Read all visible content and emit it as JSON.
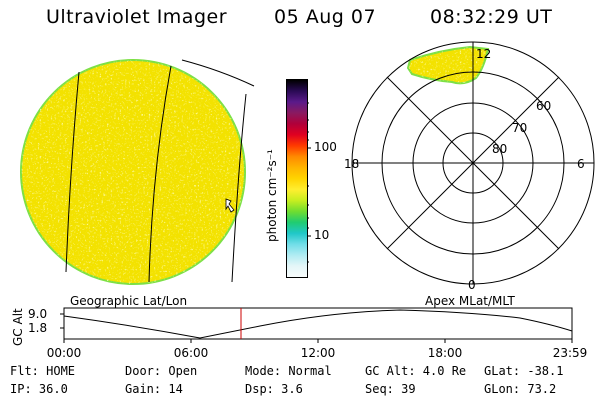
{
  "header": {
    "title": "Ultraviolet Imager",
    "date": "05 Aug 07",
    "time": "08:32:29 UT"
  },
  "colorbar": {
    "unit_label": "photon cm⁻²s⁻¹",
    "ticks": [
      "100",
      "10"
    ],
    "colors": [
      "#000000",
      "#2a0a55",
      "#5a1a8a",
      "#8a1a60",
      "#b0003a",
      "#e00020",
      "#ff3a00",
      "#ff8a00",
      "#ffb400",
      "#ffd400",
      "#ffee30",
      "#c8ee20",
      "#70dd30",
      "#20cc70",
      "#20c8c8",
      "#70dde8",
      "#b0ecf2",
      "#e4f6f8",
      "#f8fcfc"
    ]
  },
  "polar": {
    "labels": {
      "noon": "12",
      "midnight": "0",
      "dusk": "18",
      "dawn": "6"
    },
    "lat_labels": [
      "60",
      "70",
      "80"
    ]
  },
  "altitude_plot": {
    "axis_label": "GC Alt",
    "y_ticks": [
      "9.0",
      "1.8"
    ],
    "left_title": "Geographic Lat/Lon",
    "right_title": "Apex MLat/MLT",
    "time_ticks": [
      "00:00",
      "06:00",
      "12:00",
      "18:00",
      "23:59"
    ]
  },
  "status": {
    "flt": "Flt: HOME",
    "ip": "IP: 36.0",
    "door": "Door: Open",
    "gain": "Gain: 14",
    "mode": "Mode: Normal",
    "dsp": "Dsp:   3.6",
    "gc_alt": "GC Alt: 4.0 Re",
    "seq": "Seq: 39",
    "glat": "GLat: -38.1",
    "glon": "GLon:  73.2"
  },
  "colors": {
    "disk_fill": "#f3e200",
    "disk_edge": "#7de045",
    "marker_line": "#cc0000"
  }
}
